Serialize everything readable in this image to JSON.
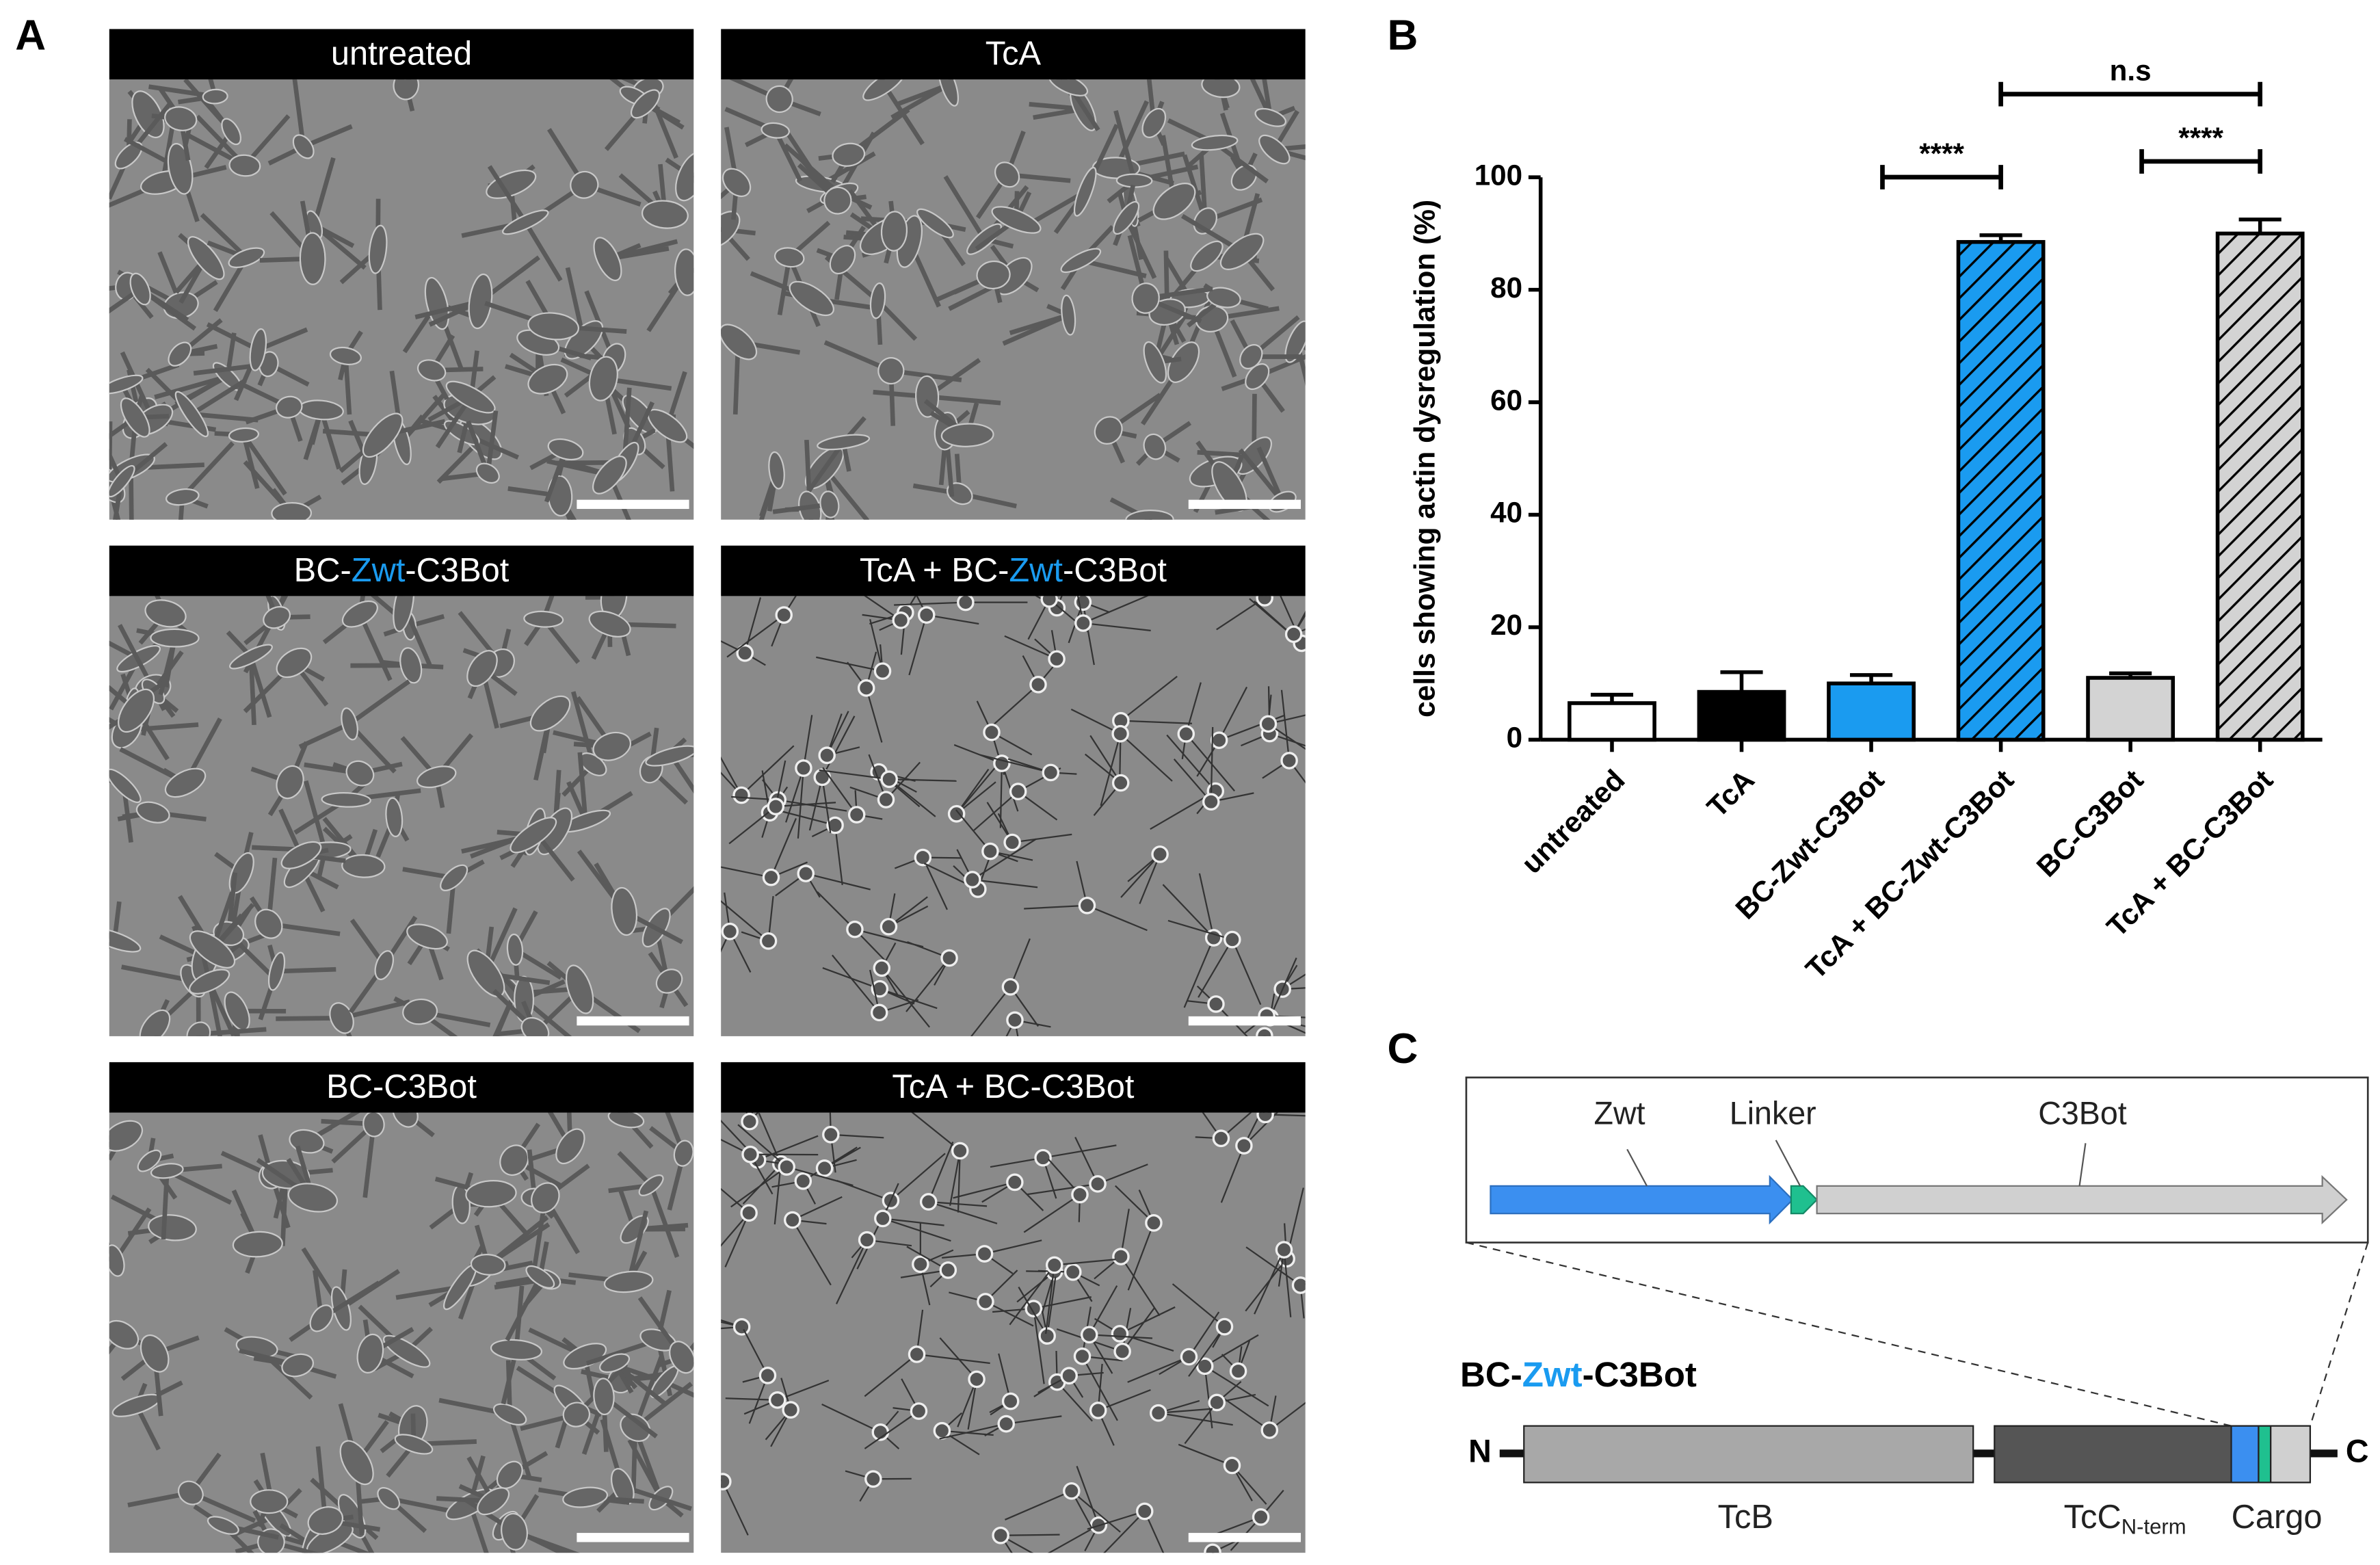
{
  "panels": {
    "a": "A",
    "b": "B",
    "c": "C"
  },
  "highlight_color": "#1a9bf0",
  "micrographs": [
    {
      "label": [
        "untreated"
      ]
    },
    {
      "label": [
        "TcA"
      ]
    },
    {
      "label": [
        "BC-",
        "Zwt",
        "-C3Bot"
      ]
    },
    {
      "label": [
        "TcA + BC-",
        "Zwt",
        "-C3Bot"
      ]
    },
    {
      "label": [
        "BC-C3Bot"
      ]
    },
    {
      "label": [
        "TcA + BC-C3Bot"
      ]
    }
  ],
  "chart_data": {
    "type": "bar",
    "y_label": "cells showing actin dysregulation (%)",
    "categories": [
      "untreated",
      "TcA",
      "BC-Zwt-C3Bot",
      "TcA + BC-Zwt-C3Bot",
      "BC-C3Bot",
      "TcA + BC-C3Bot"
    ],
    "values": [
      6.5,
      8.5,
      10,
      88.5,
      11,
      90
    ],
    "errors": [
      1.5,
      3.5,
      1.5,
      1.2,
      0.8,
      2.5
    ],
    "colors": [
      "#ffffff",
      "#000000",
      "#1a9bf0",
      "#1a9bf0",
      "#d3d3d3",
      "#d3d3d3"
    ],
    "hatched": [
      false,
      false,
      false,
      true,
      false,
      true
    ],
    "ylim": [
      0,
      100
    ],
    "yticks": [
      0,
      20,
      40,
      60,
      80,
      100
    ],
    "significance": [
      {
        "label": "****",
        "pair": [
          2,
          3
        ]
      },
      {
        "label": "****",
        "pair": [
          4,
          5
        ]
      },
      {
        "label": "n.s",
        "pair": [
          3,
          5
        ]
      }
    ]
  },
  "diagram": {
    "insert": {
      "zwt": "Zwt",
      "linker": "Linker",
      "c3bot": "C3Bot"
    },
    "construct_name": [
      "BC-",
      "Zwt",
      "-C3Bot"
    ],
    "n_term": "N",
    "c_term": "C",
    "tcb": "TcB",
    "tcc": "TcC",
    "tcc_sub": "N-term",
    "cargo": "Cargo"
  }
}
